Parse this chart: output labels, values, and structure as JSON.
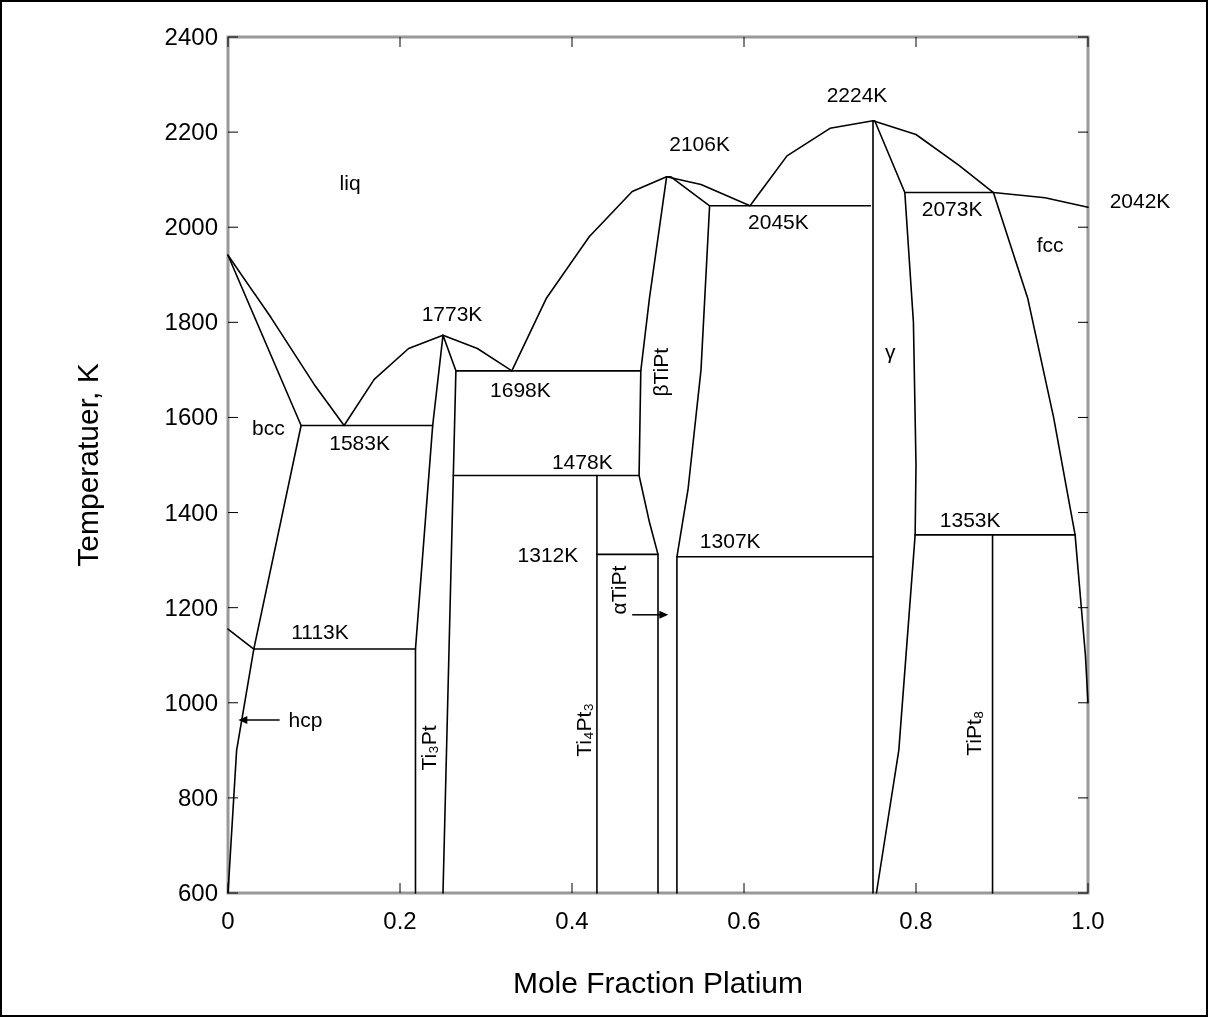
{
  "chart_data": {
    "type": "line",
    "xlabel": "Mole Fraction Platium",
    "ylabel": "Temperatuer, K",
    "xlim": [
      0,
      1
    ],
    "ylim": [
      600,
      2400
    ],
    "xticks": [
      0,
      0.2,
      0.4,
      0.6,
      0.8,
      {
        "value": 1,
        "label": "1.0"
      }
    ],
    "yticks": [
      600,
      800,
      1000,
      1200,
      1400,
      1600,
      1800,
      2000,
      2200,
      2400
    ],
    "series": [
      {
        "color": "#000000",
        "x": [
          0,
          0.05,
          0.1,
          0.135,
          0.17,
          0.21,
          0.25,
          0.29,
          0.33,
          0.37,
          0.42,
          0.47,
          0.51,
          0.55,
          0.607,
          0.65,
          0.7,
          0.75,
          0.8,
          0.85,
          0.89,
          0.95,
          1
        ],
        "values": [
          1941,
          1810,
          1670,
          1583,
          1680,
          1745,
          1773,
          1745,
          1698,
          1850,
          1980,
          2075,
          2106,
          2090,
          2045,
          2150,
          2208,
          2224,
          2195,
          2130,
          2073,
          2062,
          2042
        ]
      },
      {
        "color": "#000000",
        "x": [
          0,
          0.085,
          0.03,
          0.01,
          0
        ],
        "values": [
          1941,
          1583,
          1113,
          900,
          600
        ]
      },
      {
        "color": "#000000",
        "x": [
          0,
          0.03
        ],
        "values": [
          1155,
          1113
        ]
      },
      {
        "color": "#000000",
        "x": [
          0.03,
          0.218
        ],
        "values": [
          1113,
          1113
        ]
      },
      {
        "color": "#000000",
        "x": [
          0.085,
          0.238
        ],
        "values": [
          1583,
          1583
        ]
      },
      {
        "color": "#000000",
        "x": [
          0.218,
          0.218,
          0.238,
          0.25,
          0.265,
          0.262,
          0.25
        ],
        "values": [
          600,
          1113,
          1583,
          1773,
          1698,
          1478,
          600
        ]
      },
      {
        "color": "#000000",
        "x": [
          0.265,
          0.48
        ],
        "values": [
          1698,
          1698
        ]
      },
      {
        "color": "#000000",
        "x": [
          0.262,
          0.478
        ],
        "values": [
          1478,
          1478
        ]
      },
      {
        "color": "#000000",
        "x": [
          0.429,
          0.429
        ],
        "values": [
          600,
          1478
        ]
      },
      {
        "color": "#000000",
        "x": [
          0.429,
          0.5
        ],
        "values": [
          1312,
          1312
        ]
      },
      {
        "color": "#000000",
        "x": [
          0.5,
          0.5,
          0.49,
          0.478,
          0.48,
          0.49,
          0.51,
          0.515,
          0.56,
          0.55,
          0.535,
          0.522,
          0.522
        ],
        "values": [
          600,
          1312,
          1380,
          1478,
          1698,
          1850,
          2106,
          2106,
          2045,
          1700,
          1450,
          1307,
          600
        ]
      },
      {
        "color": "#000000",
        "x": [
          0.56,
          0.747
        ],
        "values": [
          2045,
          2045
        ]
      },
      {
        "color": "#000000",
        "x": [
          0.522,
          0.75
        ],
        "values": [
          1307,
          1307
        ]
      },
      {
        "color": "#000000",
        "x": [
          0.75,
          0.75,
          0.752,
          0.787,
          0.797,
          0.8,
          0.799,
          0.78,
          0.754
        ],
        "values": [
          600,
          2224,
          2224,
          2073,
          1800,
          1500,
          1353,
          900,
          600
        ]
      },
      {
        "color": "#000000",
        "x": [
          0.787,
          0.89
        ],
        "values": [
          2073,
          2073
        ]
      },
      {
        "color": "#000000",
        "x": [
          0.89,
          0.93,
          0.96,
          0.985,
          0.997,
          1
        ],
        "values": [
          2073,
          1850,
          1600,
          1353,
          1100,
          1000
        ]
      },
      {
        "color": "#000000",
        "x": [
          0.799,
          0.985
        ],
        "values": [
          1353,
          1353
        ]
      },
      {
        "color": "#000000",
        "x": [
          0.889,
          0.889
        ],
        "values": [
          600,
          1353
        ]
      }
    ],
    "annotations": [
      {
        "text": "2106K",
        "x": 0.51,
        "y": 2106
      },
      {
        "text": "2224K",
        "x": 0.75,
        "y": 2224
      },
      {
        "text": "2045K",
        "x": 0.64,
        "y": 2045
      },
      {
        "text": "2073K",
        "x": 0.842,
        "y": 2073
      },
      {
        "text": "2042K",
        "x": 1,
        "y": 2042
      },
      {
        "text": "1773K",
        "x": 0.25,
        "y": 1773
      },
      {
        "text": "1698K",
        "x": 0.34,
        "y": 1698
      },
      {
        "text": "1583K",
        "x": 0.153,
        "y": 1583
      },
      {
        "text": "1478K",
        "x": 0.412,
        "y": 1478
      },
      {
        "text": "1312K",
        "x": 0.429,
        "y": 1312
      },
      {
        "text": "1307K",
        "x": 0.584,
        "y": 1307
      },
      {
        "text": "1353K",
        "x": 0.863,
        "y": 1353
      },
      {
        "text": "1113K",
        "x": 0.107,
        "y": 1113
      },
      "liq",
      "fcc",
      "bcc",
      "γ",
      "hcp",
      "βTiPt",
      "αTiPt",
      "Ti₃Pt",
      "Ti₄Pt₃",
      "TiPt₈"
    ]
  }
}
